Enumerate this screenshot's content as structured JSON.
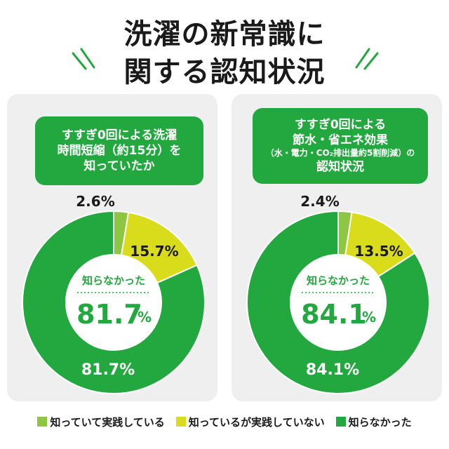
{
  "title": {
    "line1": "洗濯の新常識に",
    "line2": "関する認知状況"
  },
  "colors": {
    "green": "#23a83f",
    "light_green": "#8dc63f",
    "yellow": "#d8dc1a",
    "panel_bg": "#efefef"
  },
  "legend": [
    {
      "label": "知っていて実践している",
      "color": "#8dc63f"
    },
    {
      "label": "知っているが実践していない",
      "color": "#d8dc1a"
    },
    {
      "label": "知らなかった",
      "color": "#23a83f"
    }
  ],
  "chart_data": [
    {
      "type": "pie",
      "question": [
        "すすぎ0回による洗濯",
        "時間短縮（約15分）を",
        "知っていたか"
      ],
      "categories": [
        "知っていて実践している",
        "知っているが実践していない",
        "知らなかった"
      ],
      "values": [
        2.6,
        15.7,
        81.7
      ],
      "labels": [
        "2.6%",
        "15.7%",
        "81.7%"
      ],
      "center_label": "知らなかった",
      "center_value": "81.7",
      "center_unit": "%"
    },
    {
      "type": "pie",
      "question": [
        "すすぎ0回による",
        "節水・省エネ効果",
        "（水・電力・CO₂排出量約5割削減）の",
        "認知状況"
      ],
      "categories": [
        "知っていて実践している",
        "知っているが実践していない",
        "知らなかった"
      ],
      "values": [
        2.4,
        13.5,
        84.1
      ],
      "labels": [
        "2.4%",
        "13.5%",
        "84.1%"
      ],
      "center_label": "知らなかった",
      "center_value": "84.1",
      "center_unit": "%"
    }
  ]
}
